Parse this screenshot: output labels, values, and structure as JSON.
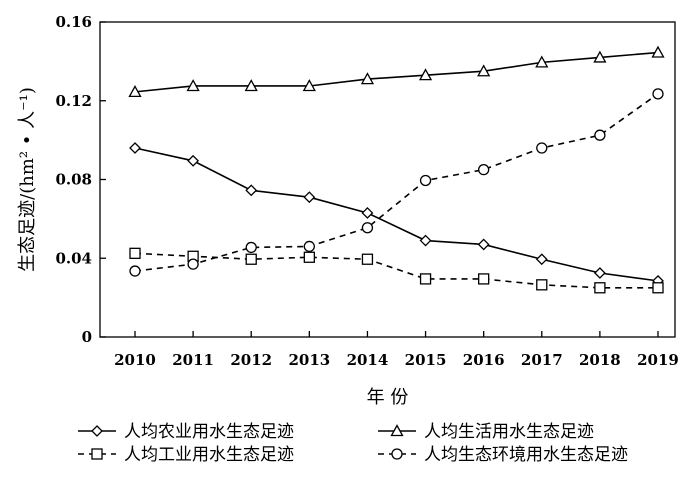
{
  "chart_data": {
    "type": "line",
    "x": [
      "2010",
      "2011",
      "2012",
      "2013",
      "2014",
      "2015",
      "2016",
      "2017",
      "2018",
      "2019"
    ],
    "series": [
      {
        "name": "人均农业用水生态足迹",
        "marker": "diamond",
        "line": "solid",
        "values": [
          0.096,
          0.0895,
          0.0745,
          0.071,
          0.063,
          0.049,
          0.047,
          0.0395,
          0.0325,
          0.0285
        ]
      },
      {
        "name": "人均生活用水生态足迹",
        "marker": "triangle",
        "line": "solid",
        "values": [
          0.1245,
          0.1275,
          0.1275,
          0.1275,
          0.131,
          0.133,
          0.135,
          0.1395,
          0.142,
          0.1445
        ]
      },
      {
        "name": "人均工业用水生态足迹",
        "marker": "square",
        "line": "dashed",
        "values": [
          0.0425,
          0.041,
          0.0395,
          0.0405,
          0.0395,
          0.0295,
          0.0295,
          0.0265,
          0.025,
          0.025
        ]
      },
      {
        "name": "人均生态环境用水生态足迹",
        "marker": "circle",
        "line": "dashed",
        "values": [
          0.0335,
          0.037,
          0.0455,
          0.046,
          0.0555,
          0.0795,
          0.085,
          0.096,
          0.1025,
          0.1235
        ]
      }
    ],
    "xlabel": "年 份",
    "ylabel": "生态足迹/(hm² • 人⁻¹)",
    "ylim": [
      0,
      0.16
    ],
    "yticks": [
      "0",
      "0.04",
      "0.08",
      "0.12",
      "0.16"
    ],
    "grid": false,
    "legend_position": "bottom"
  }
}
